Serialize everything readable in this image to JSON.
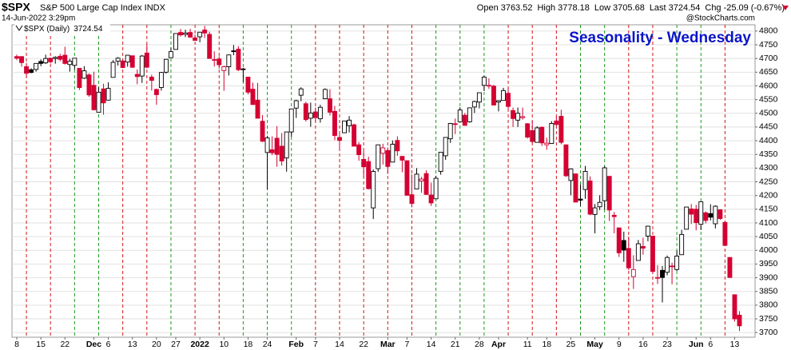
{
  "chart_data": {
    "type": "candlestick",
    "title": "Seasonality - Wednesday",
    "header": {
      "symbol": "$SPX",
      "name": "S&P 500 Large Cap Index INDX",
      "date": "14-Jun-2022 3:29pm",
      "labels": [
        "Open",
        "High",
        "Low",
        "Last",
        "Chg"
      ],
      "change": "-25.09 (-0.67%)",
      "source": "@StockCharts.com"
    },
    "legend": "$SPX (Daily)",
    "up_color": "#000000",
    "down_color": "#d50032",
    "title_color": "#0a14c8",
    "line_up_color": "#1e9a1e",
    "line_down_color": "#d01818",
    "grid": true,
    "ylim": [
      3683,
      4823
    ],
    "yticks": [
      3700,
      3750,
      3800,
      3850,
      3900,
      3950,
      4000,
      4050,
      4100,
      4150,
      4200,
      4250,
      4300,
      4350,
      4400,
      4450,
      4500,
      4550,
      4600,
      4650,
      4700,
      4750,
      4800
    ],
    "categories": [
      "8",
      null,
      null,
      null,
      null,
      "15",
      null,
      null,
      null,
      null,
      "22",
      null,
      null,
      null,
      null,
      null,
      "Dec",
      null,
      null,
      "6",
      null,
      null,
      null,
      null,
      "13",
      null,
      null,
      null,
      null,
      "20",
      null,
      null,
      null,
      "27",
      null,
      null,
      null,
      null,
      "2022",
      null,
      null,
      null,
      null,
      "10",
      null,
      null,
      null,
      null,
      "18",
      null,
      null,
      null,
      "24",
      null,
      null,
      null,
      null,
      null,
      "Feb",
      null,
      null,
      null,
      "7",
      null,
      null,
      null,
      null,
      "14",
      null,
      null,
      null,
      null,
      "22",
      null,
      null,
      null,
      null,
      "Mar",
      null,
      null,
      null,
      "7",
      null,
      null,
      null,
      null,
      "14",
      null,
      null,
      null,
      null,
      "21",
      null,
      null,
      null,
      null,
      "28",
      null,
      null,
      null,
      "Apr",
      null,
      null,
      null,
      null,
      null,
      "11",
      null,
      null,
      null,
      "18",
      null,
      null,
      null,
      null,
      "25",
      null,
      null,
      null,
      null,
      "May",
      null,
      null,
      null,
      null,
      "9",
      null,
      null,
      null,
      null,
      "16",
      null,
      null,
      null,
      null,
      "23",
      null,
      null,
      null,
      null,
      null,
      "Jun",
      null,
      null,
      "6",
      null,
      null,
      null,
      null,
      "13",
      null
    ],
    "ohlc": [
      [
        4707,
        4714,
        4694,
        4701
      ],
      [
        4707,
        4708,
        4670,
        4685
      ],
      [
        4670,
        4684,
        4630,
        4646
      ],
      [
        4659,
        4664,
        4646,
        4649
      ],
      [
        4660,
        4683,
        4652,
        4682
      ],
      [
        4689,
        4697,
        4672,
        4682
      ],
      [
        4684,
        4714,
        4680,
        4700
      ],
      [
        4701,
        4703,
        4682,
        4688
      ],
      [
        4700,
        4708,
        4681,
        4704
      ],
      [
        4708,
        4717,
        4690,
        4697
      ],
      [
        4712,
        4743,
        4678,
        4682
      ],
      [
        4678,
        4699,
        4652,
        4690
      ],
      [
        4675,
        4702,
        4659,
        4701
      ],
      [
        4664,
        4664,
        4585,
        4594
      ],
      [
        4628,
        4672,
        4625,
        4655
      ],
      [
        4640,
        4646,
        4560,
        4567
      ],
      [
        4602,
        4652,
        4510,
        4513
      ],
      [
        4504,
        4595,
        4504,
        4577
      ],
      [
        4589,
        4608,
        4495,
        4538
      ],
      [
        4548,
        4613,
        4547,
        4591
      ],
      [
        4631,
        4694,
        4631,
        4686
      ],
      [
        4690,
        4705,
        4674,
        4701
      ],
      [
        4691,
        4695,
        4665,
        4667
      ],
      [
        4687,
        4713,
        4670,
        4712
      ],
      [
        4710,
        4710,
        4666,
        4668
      ],
      [
        4642,
        4660,
        4606,
        4634
      ],
      [
        4636,
        4713,
        4611,
        4709
      ],
      [
        4720,
        4752,
        4665,
        4668
      ],
      [
        4632,
        4641,
        4583,
        4620
      ],
      [
        4587,
        4590,
        4531,
        4568
      ],
      [
        4594,
        4651,
        4583,
        4649
      ],
      [
        4650,
        4698,
        4645,
        4697
      ],
      [
        4703,
        4740,
        4703,
        4725
      ],
      [
        4733,
        4791,
        4733,
        4791
      ],
      [
        4795,
        4808,
        4780,
        4786
      ],
      [
        4788,
        4805,
        4778,
        4793
      ],
      [
        4795,
        4808,
        4775,
        4778
      ],
      [
        4775,
        4787,
        4765,
        4766
      ],
      [
        4779,
        4796,
        4759,
        4796
      ],
      [
        4804,
        4819,
        4775,
        4793
      ],
      [
        4788,
        4798,
        4700,
        4700
      ],
      [
        4693,
        4726,
        4671,
        4696
      ],
      [
        4698,
        4708,
        4663,
        4677
      ],
      [
        4656,
        4674,
        4582,
        4670
      ],
      [
        4670,
        4714,
        4638,
        4713
      ],
      [
        4728,
        4749,
        4712,
        4726
      ],
      [
        4734,
        4745,
        4654,
        4659
      ],
      [
        4660,
        4666,
        4614,
        4662
      ],
      [
        4632,
        4632,
        4569,
        4577
      ],
      [
        4588,
        4612,
        4530,
        4532
      ],
      [
        4548,
        4611,
        4482,
        4482
      ],
      [
        4471,
        4494,
        4395,
        4398
      ],
      [
        4357,
        4418,
        4222,
        4410
      ],
      [
        4367,
        4416,
        4347,
        4356
      ],
      [
        4409,
        4453,
        4305,
        4350
      ],
      [
        4380,
        4428,
        4309,
        4326
      ],
      [
        4337,
        4432,
        4287,
        4432
      ],
      [
        4432,
        4516,
        4414,
        4516
      ],
      [
        4519,
        4549,
        4483,
        4546
      ],
      [
        4566,
        4595,
        4544,
        4589
      ],
      [
        4535,
        4542,
        4470,
        4477
      ],
      [
        4482,
        4539,
        4451,
        4501
      ],
      [
        4505,
        4521,
        4471,
        4484
      ],
      [
        4480,
        4531,
        4466,
        4522
      ],
      [
        4553,
        4591,
        4553,
        4587
      ],
      [
        4553,
        4588,
        4492,
        4504
      ],
      [
        4507,
        4527,
        4402,
        4419
      ],
      [
        4412,
        4427,
        4365,
        4401
      ],
      [
        4429,
        4473,
        4429,
        4472
      ],
      [
        4455,
        4490,
        4430,
        4475
      ],
      [
        4458,
        4462,
        4379,
        4380
      ],
      [
        4385,
        4395,
        4327,
        4349
      ],
      [
        4332,
        4363,
        4268,
        4305
      ],
      [
        4324,
        4342,
        4222,
        4225
      ],
      [
        4155,
        4295,
        4114,
        4288
      ],
      [
        4298,
        4386,
        4287,
        4385
      ],
      [
        4354,
        4389,
        4313,
        4374
      ],
      [
        4364,
        4375,
        4279,
        4306
      ],
      [
        4322,
        4401,
        4322,
        4387
      ],
      [
        4401,
        4416,
        4345,
        4363
      ],
      [
        4343,
        4343,
        4285,
        4329
      ],
      [
        4327,
        4328,
        4199,
        4201
      ],
      [
        4203,
        4277,
        4157,
        4171
      ],
      [
        4224,
        4300,
        4224,
        4278
      ],
      [
        4253,
        4268,
        4210,
        4260
      ],
      [
        4280,
        4292,
        4202,
        4204
      ],
      [
        4202,
        4247,
        4162,
        4173
      ],
      [
        4188,
        4272,
        4187,
        4263
      ],
      [
        4288,
        4358,
        4276,
        4358
      ],
      [
        4345,
        4412,
        4330,
        4412
      ],
      [
        4407,
        4465,
        4392,
        4463
      ],
      [
        4462,
        4481,
        4424,
        4461
      ],
      [
        4469,
        4522,
        4469,
        4512
      ],
      [
        4493,
        4501,
        4455,
        4456
      ],
      [
        4469,
        4520,
        4466,
        4520
      ],
      [
        4523,
        4546,
        4501,
        4543
      ],
      [
        4541,
        4575,
        4518,
        4575
      ],
      [
        4602,
        4637,
        4581,
        4632
      ],
      [
        4599,
        4628,
        4589,
        4602
      ],
      [
        4599,
        4604,
        4530,
        4530
      ],
      [
        4541,
        4547,
        4507,
        4546
      ],
      [
        4547,
        4593,
        4547,
        4583
      ],
      [
        4573,
        4593,
        4514,
        4525
      ],
      [
        4510,
        4521,
        4450,
        4481
      ],
      [
        4475,
        4521,
        4450,
        4500
      ],
      [
        4484,
        4521,
        4477,
        4488
      ],
      [
        4462,
        4464,
        4408,
        4413
      ],
      [
        4437,
        4471,
        4391,
        4397
      ],
      [
        4394,
        4453,
        4393,
        4447
      ],
      [
        4449,
        4452,
        4381,
        4392
      ],
      [
        4385,
        4411,
        4367,
        4391
      ],
      [
        4390,
        4471,
        4390,
        4463
      ],
      [
        4472,
        4489,
        4455,
        4459
      ],
      [
        4489,
        4513,
        4387,
        4394
      ],
      [
        4385,
        4386,
        4268,
        4272
      ],
      [
        4255,
        4299,
        4201,
        4297
      ],
      [
        4279,
        4279,
        4176,
        4176
      ],
      [
        4187,
        4240,
        4162,
        4183
      ],
      [
        4222,
        4308,
        4188,
        4288
      ],
      [
        4253,
        4270,
        4128,
        4132
      ],
      [
        4131,
        4169,
        4062,
        4155
      ],
      [
        4159,
        4201,
        4147,
        4175
      ],
      [
        4181,
        4307,
        4148,
        4301
      ],
      [
        4270,
        4271,
        4107,
        4147
      ],
      [
        4128,
        4140,
        4062,
        4123
      ],
      [
        4082,
        4082,
        3976,
        3991
      ],
      [
        4036,
        4068,
        3958,
        4001
      ],
      [
        4007,
        4050,
        3928,
        3936
      ],
      [
        3904,
        3982,
        3859,
        3930
      ],
      [
        3963,
        4038,
        3963,
        4024
      ],
      [
        4014,
        4046,
        3984,
        4008
      ],
      [
        4052,
        4090,
        4033,
        4088
      ],
      [
        4052,
        4052,
        3914,
        3923
      ],
      [
        3900,
        3946,
        3877,
        3901
      ],
      [
        3927,
        3943,
        3810,
        3901
      ],
      [
        3920,
        3981,
        3909,
        3974
      ],
      [
        3943,
        3955,
        3876,
        3941
      ],
      [
        3930,
        3999,
        3925,
        3979
      ],
      [
        3984,
        4075,
        3984,
        4058
      ],
      [
        4077,
        4158,
        4077,
        4158
      ],
      [
        4151,
        4169,
        4096,
        4132
      ],
      [
        4150,
        4166,
        4073,
        4101
      ],
      [
        4095,
        4177,
        4074,
        4177
      ],
      [
        4137,
        4142,
        4098,
        4109
      ],
      [
        4134,
        4168,
        4109,
        4121
      ],
      [
        4097,
        4164,
        4080,
        4161
      ],
      [
        4148,
        4150,
        4111,
        4116
      ],
      [
        4102,
        4107,
        4018,
        4018
      ],
      [
        3974,
        3974,
        3900,
        3901
      ],
      [
        3838,
        3838,
        3740,
        3750
      ],
      [
        3763.52,
        3778.18,
        3705.68,
        3724.54
      ]
    ]
  }
}
